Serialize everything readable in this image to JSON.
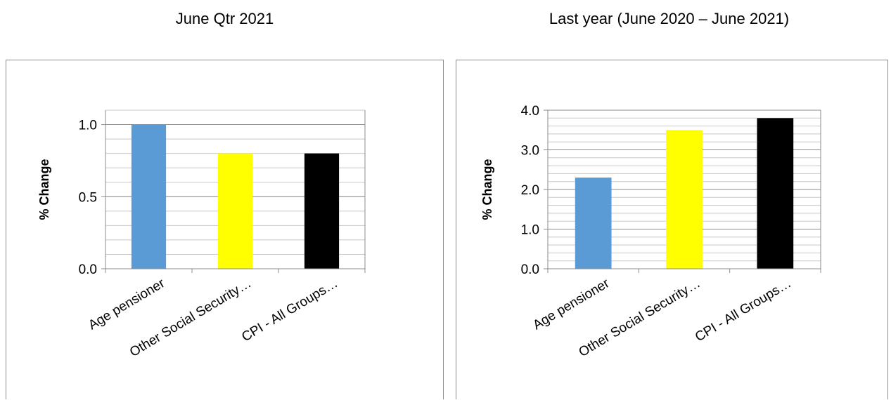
{
  "chart_data": [
    {
      "type": "bar",
      "title": "June Qtr 2021",
      "categories": [
        "Age pensioner",
        "Other Social Security…",
        "CPI - All Groups…"
      ],
      "values": [
        1.0,
        0.8,
        0.8
      ],
      "bar_colors": [
        "#5b9bd5",
        "#ffff00",
        "#000000"
      ],
      "ylabel": "% Change",
      "xlabel": "",
      "ylim": [
        0,
        1.1
      ],
      "yticks": [
        0.0,
        0.5,
        1.0
      ],
      "ytick_labels": [
        "0.0",
        "0.5",
        "1.0"
      ],
      "minor_step": 0.1,
      "grid": true,
      "legend": "none"
    },
    {
      "type": "bar",
      "title": "Last year (June 2020 – June 2021)",
      "categories": [
        "Age pensioner",
        "Other Social Security…",
        "CPI - All Groups…"
      ],
      "values": [
        2.3,
        3.5,
        3.8
      ],
      "bar_colors": [
        "#5b9bd5",
        "#ffff00",
        "#000000"
      ],
      "ylabel": "% Change",
      "xlabel": "",
      "ylim": [
        0,
        4.0
      ],
      "yticks": [
        0.0,
        1.0,
        2.0,
        3.0,
        4.0
      ],
      "ytick_labels": [
        "0.0",
        "1.0",
        "2.0",
        "3.0",
        "4.0"
      ],
      "minor_step": 0.2,
      "grid": true,
      "legend": "none"
    }
  ]
}
